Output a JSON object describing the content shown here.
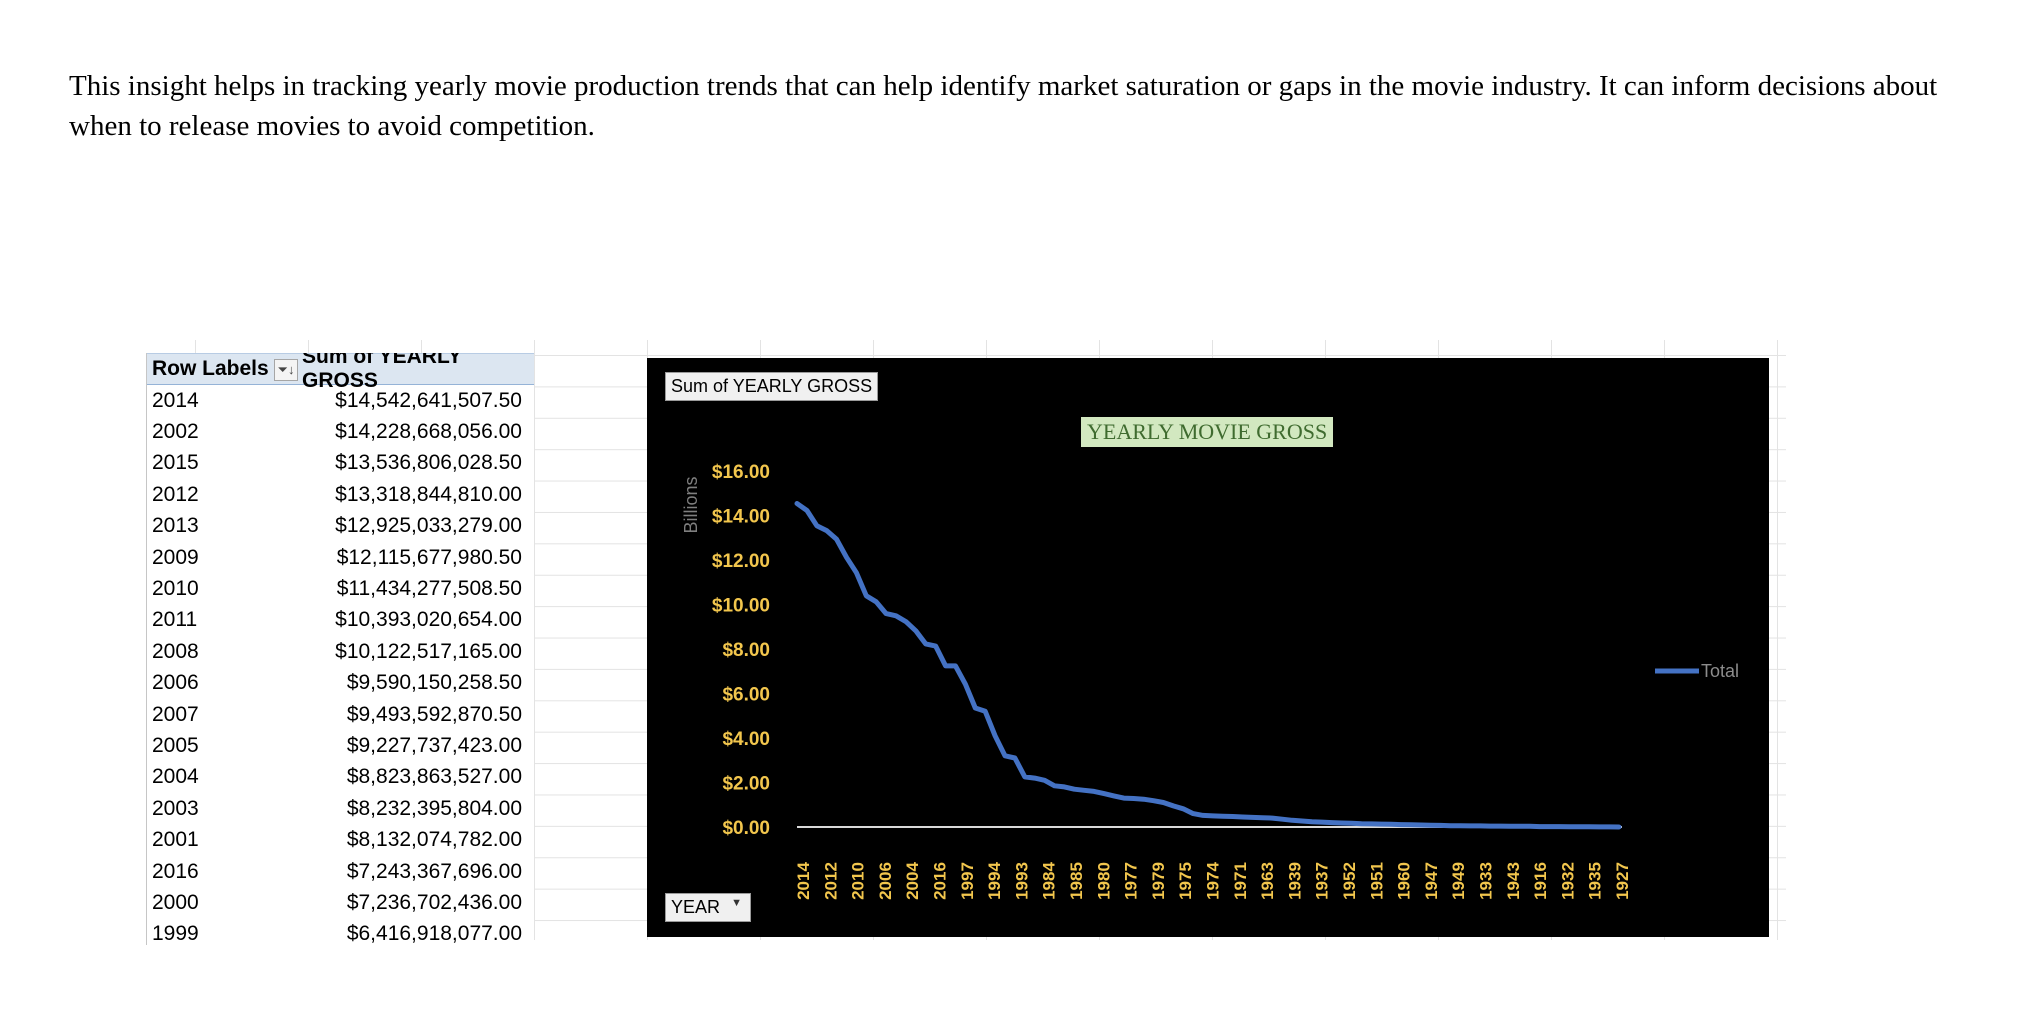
{
  "paragraph": "This insight helps in tracking yearly movie production trends that can help identify market saturation or gaps in the movie industry. It can inform decisions about when to release movies to avoid competition.",
  "pivot": {
    "header_labels": "Row Labels",
    "header_sum": "Sum of YEARLY GROSS",
    "sort_icon": "sort-descending-filter-icon",
    "rows": [
      {
        "year": "2014",
        "value": "$14,542,641,507.50"
      },
      {
        "year": "2002",
        "value": "$14,228,668,056.00"
      },
      {
        "year": "2015",
        "value": "$13,536,806,028.50"
      },
      {
        "year": "2012",
        "value": "$13,318,844,810.00"
      },
      {
        "year": "2013",
        "value": "$12,925,033,279.00"
      },
      {
        "year": "2009",
        "value": "$12,115,677,980.50"
      },
      {
        "year": "2010",
        "value": "$11,434,277,508.50"
      },
      {
        "year": "2011",
        "value": "$10,393,020,654.00"
      },
      {
        "year": "2008",
        "value": "$10,122,517,165.00"
      },
      {
        "year": "2006",
        "value": "$9,590,150,258.50"
      },
      {
        "year": "2007",
        "value": "$9,493,592,870.50"
      },
      {
        "year": "2005",
        "value": "$9,227,737,423.00"
      },
      {
        "year": "2004",
        "value": "$8,823,863,527.00"
      },
      {
        "year": "2003",
        "value": "$8,232,395,804.00"
      },
      {
        "year": "2001",
        "value": "$8,132,074,782.00"
      },
      {
        "year": "2016",
        "value": "$7,243,367,696.00"
      },
      {
        "year": "2000",
        "value": "$7,236,702,436.00"
      },
      {
        "year": "1999",
        "value": "$6,416,918,077.00"
      }
    ]
  },
  "chart_ui": {
    "field_sum": "Sum of YEARLY GROSS",
    "field_year": "YEAR",
    "dropdown_glyph": "▼",
    "units_label": "Billions"
  },
  "colors": {
    "chart_background": "#000000",
    "line": "#4472c4",
    "tick_text": "#f2c64d",
    "title_bg": "#d2e8c0",
    "title_text": "#3f6b2f"
  },
  "chart_data": {
    "type": "line",
    "title": "YEARLY MOVIE GROSS",
    "units": "Billions",
    "ylim": [
      0,
      16
    ],
    "yticks": [
      "$16.00",
      "$14.00",
      "$12.00",
      "$10.00",
      "$8.00",
      "$6.00",
      "$4.00",
      "$2.00",
      "$0.00"
    ],
    "legend": "right",
    "x_tick_labels": [
      "2014",
      "2012",
      "2010",
      "2006",
      "2004",
      "2016",
      "1997",
      "1994",
      "1993",
      "1984",
      "1985",
      "1980",
      "1977",
      "1979",
      "1975",
      "1974",
      "1971",
      "1963",
      "1939",
      "1937",
      "1952",
      "1951",
      "1960",
      "1947",
      "1949",
      "1933",
      "1943",
      "1916",
      "1932",
      "1935",
      "1927"
    ],
    "series": [
      {
        "name": "Total",
        "values": [
          14.54,
          14.23,
          13.54,
          13.32,
          12.93,
          12.12,
          11.43,
          10.39,
          10.12,
          9.59,
          9.49,
          9.23,
          8.82,
          8.23,
          8.13,
          7.24,
          7.24,
          6.42,
          5.35,
          5.2,
          4.1,
          3.2,
          3.1,
          2.25,
          2.2,
          2.1,
          1.85,
          1.8,
          1.7,
          1.65,
          1.6,
          1.5,
          1.4,
          1.3,
          1.28,
          1.25,
          1.18,
          1.1,
          0.95,
          0.82,
          0.6,
          0.52,
          0.5,
          0.48,
          0.47,
          0.45,
          0.43,
          0.42,
          0.4,
          0.35,
          0.3,
          0.27,
          0.24,
          0.22,
          0.2,
          0.18,
          0.17,
          0.15,
          0.14,
          0.13,
          0.12,
          0.11,
          0.1,
          0.09,
          0.08,
          0.07,
          0.06,
          0.06,
          0.05,
          0.05,
          0.04,
          0.04,
          0.03,
          0.03,
          0.03,
          0.02,
          0.02,
          0.02,
          0.01,
          0.01,
          0.01,
          0.005,
          0.005,
          0.0
        ]
      }
    ]
  }
}
